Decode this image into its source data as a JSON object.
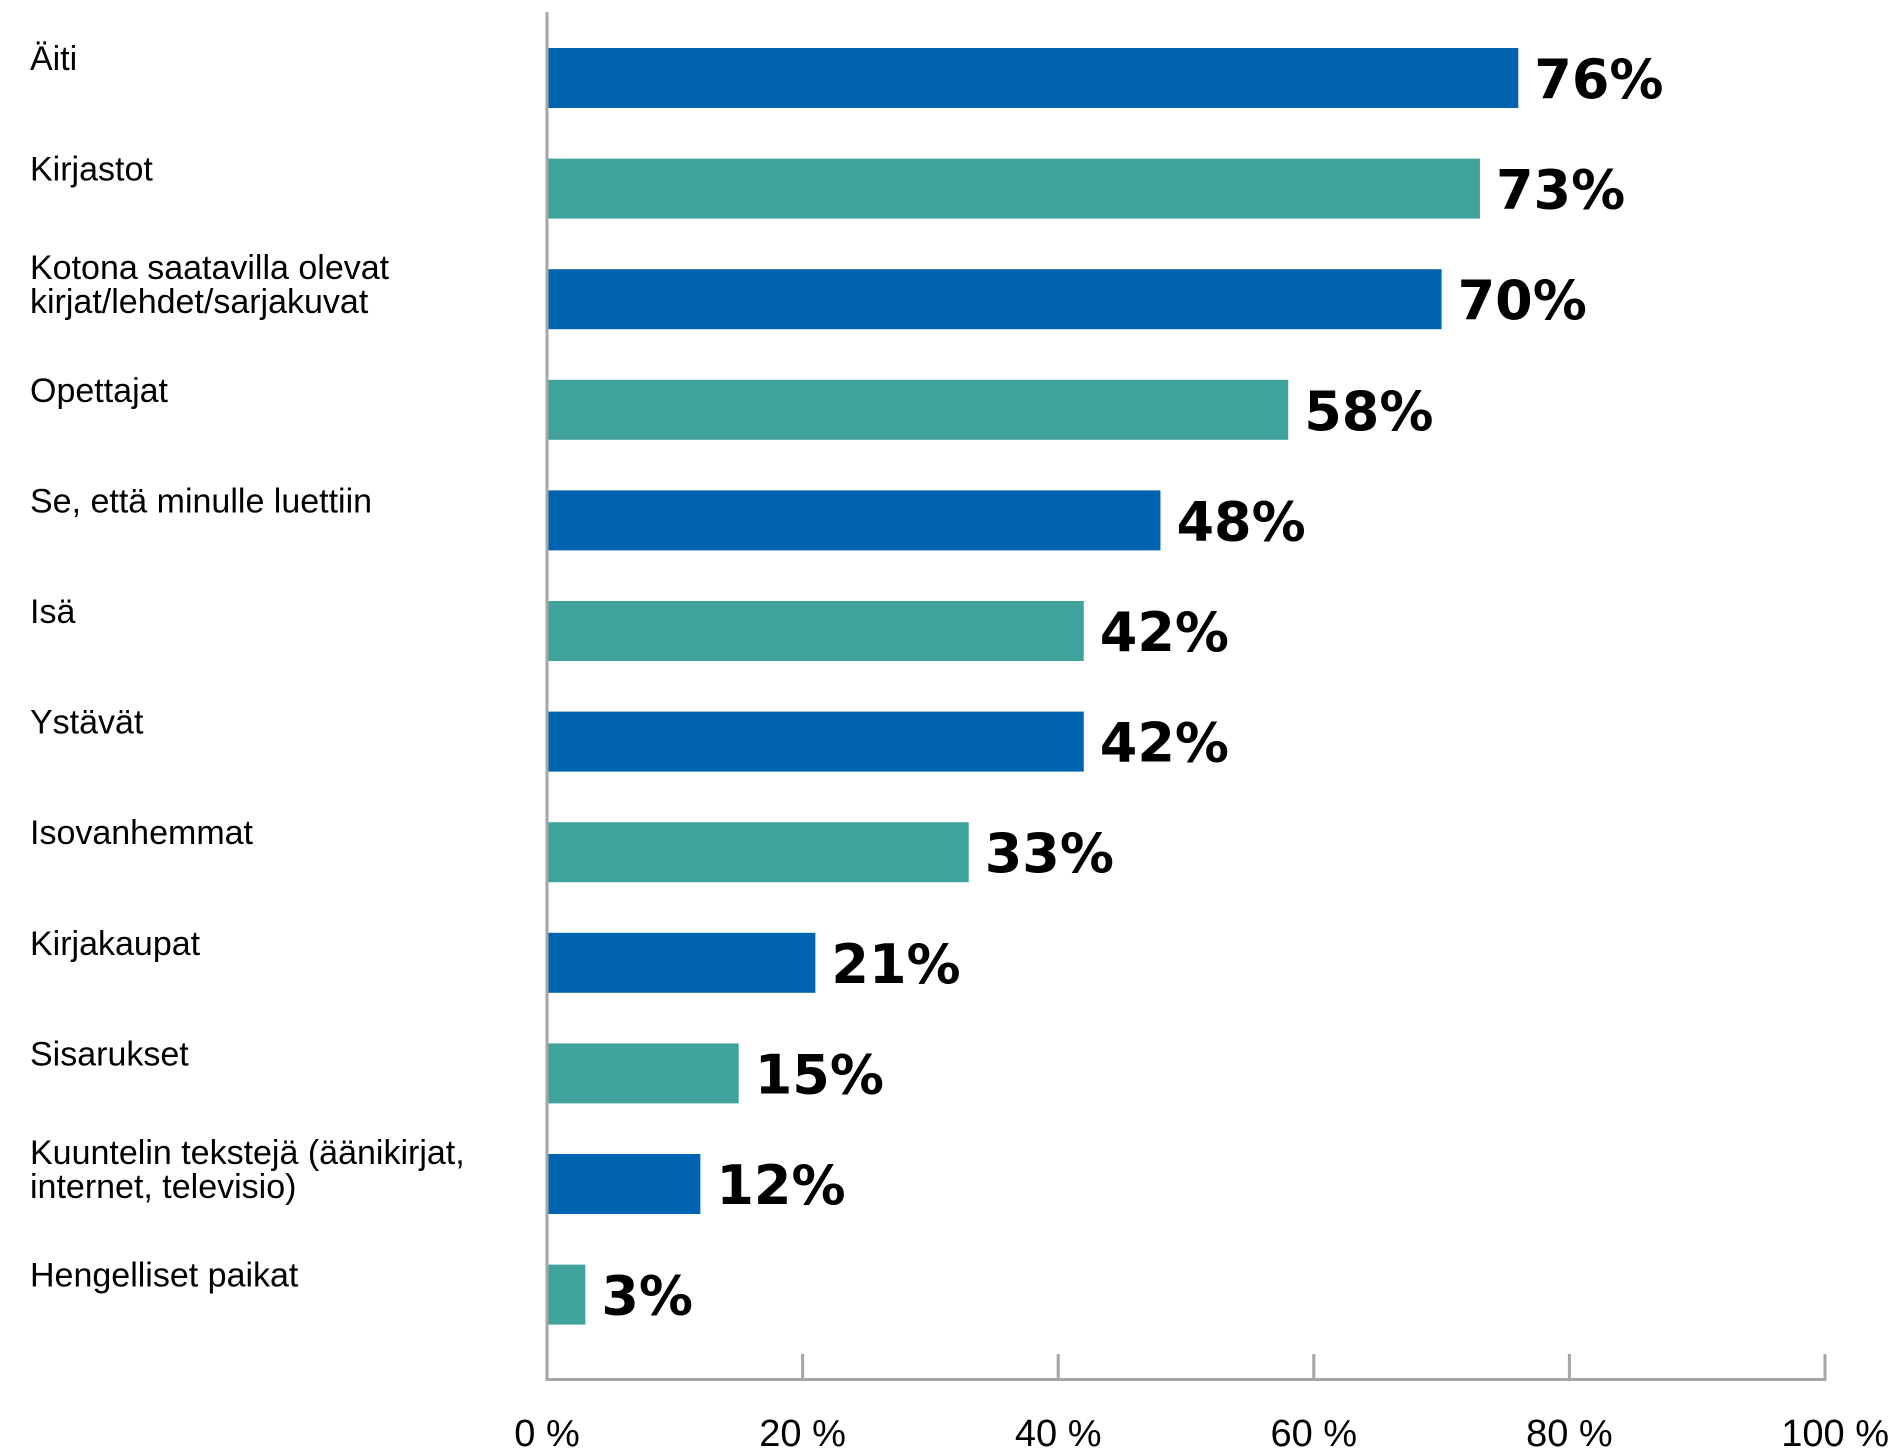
{
  "chart_data": {
    "type": "bar",
    "orientation": "horizontal",
    "title": "",
    "xlabel": "",
    "ylabel": "",
    "categories": [
      [
        "Äiti"
      ],
      [
        "Kirjastot"
      ],
      [
        "Kotona saatavilla olevat",
        "kirjat/lehdet/sarjakuvat"
      ],
      [
        "Opettajat"
      ],
      [
        "Se, että minulle luettiin"
      ],
      [
        "Isä"
      ],
      [
        "Ystävät"
      ],
      [
        "Isovanhemmat"
      ],
      [
        "Kirjakaupat"
      ],
      [
        "Sisarukset"
      ],
      [
        "Kuuntelin tekstejä (äänikirjat,",
        "internet, televisio)"
      ],
      [
        "Hengelliset paikat"
      ]
    ],
    "values": [
      76,
      73,
      70,
      58,
      48,
      42,
      42,
      33,
      21,
      15,
      12,
      3
    ],
    "value_labels": [
      "76%",
      "73%",
      "70%",
      "58%",
      "48%",
      "42%",
      "42%",
      "33%",
      "21%",
      "15%",
      "12%",
      "3%"
    ],
    "bar_colors": [
      "#0063b0",
      "#40a39b",
      "#0063b0",
      "#40a39b",
      "#0063b0",
      "#40a39b",
      "#0063b0",
      "#40a39b",
      "#0063b0",
      "#40a39b",
      "#0063b0",
      "#40a39b"
    ],
    "xlim": [
      0,
      100
    ],
    "x_ticks": [
      0,
      20,
      40,
      60,
      80,
      100
    ],
    "x_tick_labels": [
      "0 %",
      "20 %",
      "40 %",
      "60 %",
      "80 %",
      "100 %"
    ],
    "grid": false,
    "legend": "none",
    "axis_color": "#a6a6a6"
  }
}
